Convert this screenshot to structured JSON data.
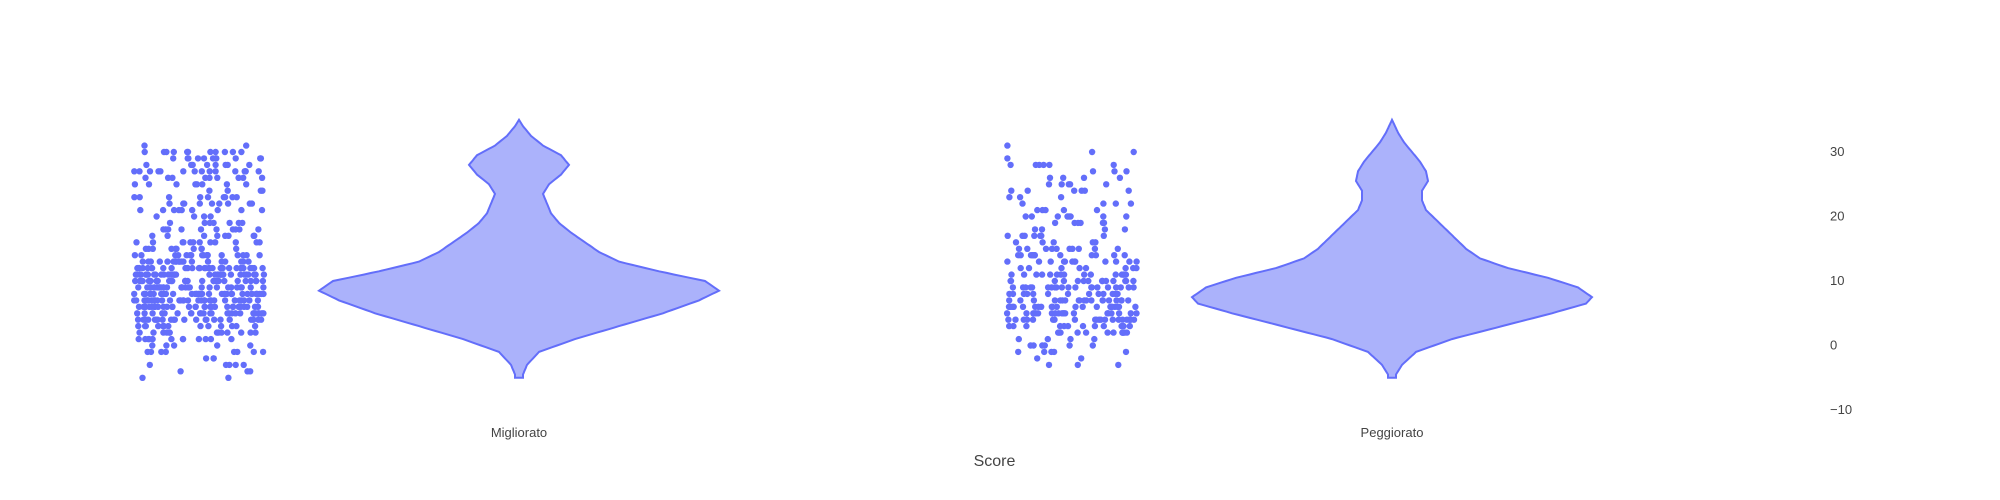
{
  "chart_data": {
    "type": "violin",
    "xlabel": "Score",
    "ylabel": "",
    "ylim": [
      -10,
      35
    ],
    "yticks": [
      30,
      20,
      10,
      0,
      -10
    ],
    "ytick_labels": [
      "30",
      "20",
      "10",
      "0",
      "−10"
    ],
    "y_axis_side": "right",
    "grid": false,
    "points": "all",
    "colors": {
      "line": "#636efa",
      "fill": "#abb2fb",
      "point": "#636efa"
    },
    "categories": [
      "Migliorato",
      "Peggiorato"
    ],
    "series": [
      {
        "category": "Migliorato",
        "n_points": 520,
        "range": [
          -5,
          35
        ],
        "points_range": [
          -5,
          31
        ],
        "density": [
          [
            -4.5,
            0.02
          ],
          [
            -3,
            0.04
          ],
          [
            -1,
            0.1
          ],
          [
            1,
            0.28
          ],
          [
            3,
            0.5
          ],
          [
            5,
            0.72
          ],
          [
            7,
            0.9
          ],
          [
            8.5,
            1.0
          ],
          [
            10,
            0.93
          ],
          [
            11.5,
            0.7
          ],
          [
            13,
            0.5
          ],
          [
            14.5,
            0.4
          ],
          [
            16,
            0.33
          ],
          [
            17.5,
            0.26
          ],
          [
            19,
            0.2
          ],
          [
            20.5,
            0.16
          ],
          [
            22,
            0.14
          ],
          [
            23.5,
            0.12
          ],
          [
            25,
            0.15
          ],
          [
            26.5,
            0.21
          ],
          [
            28,
            0.25
          ],
          [
            29.5,
            0.21
          ],
          [
            31,
            0.12
          ],
          [
            32.5,
            0.06
          ],
          [
            34,
            0.02
          ],
          [
            35,
            0.0
          ]
        ]
      },
      {
        "category": "Peggiorato",
        "n_points": 300,
        "range": [
          -5,
          35
        ],
        "points_range": [
          -5,
          31
        ],
        "density": [
          [
            -4.5,
            0.02
          ],
          [
            -3,
            0.05
          ],
          [
            -1,
            0.12
          ],
          [
            1,
            0.3
          ],
          [
            3,
            0.55
          ],
          [
            5,
            0.8
          ],
          [
            6.5,
            0.97
          ],
          [
            7.5,
            1.0
          ],
          [
            9,
            0.93
          ],
          [
            10.5,
            0.78
          ],
          [
            12,
            0.58
          ],
          [
            13.5,
            0.44
          ],
          [
            15,
            0.37
          ],
          [
            16.5,
            0.32
          ],
          [
            18,
            0.27
          ],
          [
            19.5,
            0.22
          ],
          [
            21,
            0.17
          ],
          [
            22.5,
            0.15
          ],
          [
            24,
            0.15
          ],
          [
            25.5,
            0.18
          ],
          [
            27,
            0.17
          ],
          [
            28.5,
            0.14
          ],
          [
            30,
            0.1
          ],
          [
            31.5,
            0.06
          ],
          [
            33,
            0.03
          ],
          [
            35,
            0.0
          ]
        ]
      }
    ]
  }
}
